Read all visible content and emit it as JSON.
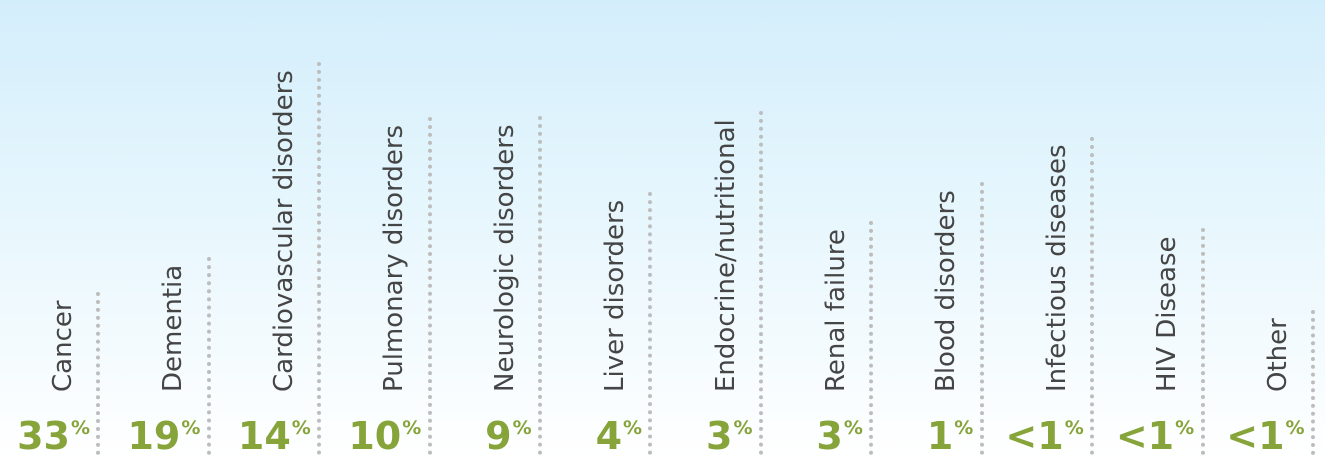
{
  "chart_data": {
    "type": "bar",
    "categories": [
      "Cancer",
      "Dementia",
      "Cardiovascular disorders",
      "Pulmonary disorders",
      "Neurologic disorders",
      "Liver disorders",
      "Endocrine/nutritional",
      "Renal failure",
      "Blood disorders",
      "Infectious diseases",
      "HIV Disease",
      "Other"
    ],
    "series": [
      {
        "values": [
          33,
          19,
          14,
          10,
          9,
          4,
          3,
          3,
          1,
          0.5,
          0.5,
          0.5
        ],
        "value_labels": [
          "33",
          "19",
          "14",
          "10",
          "9",
          "4",
          "3",
          "3",
          "1",
          "<1",
          "<1",
          "<1"
        ],
        "unit": "%"
      }
    ],
    "colors": {
      "value_text": "#86a43a",
      "label_text": "#454545",
      "dots": "#bdbdbd"
    }
  }
}
